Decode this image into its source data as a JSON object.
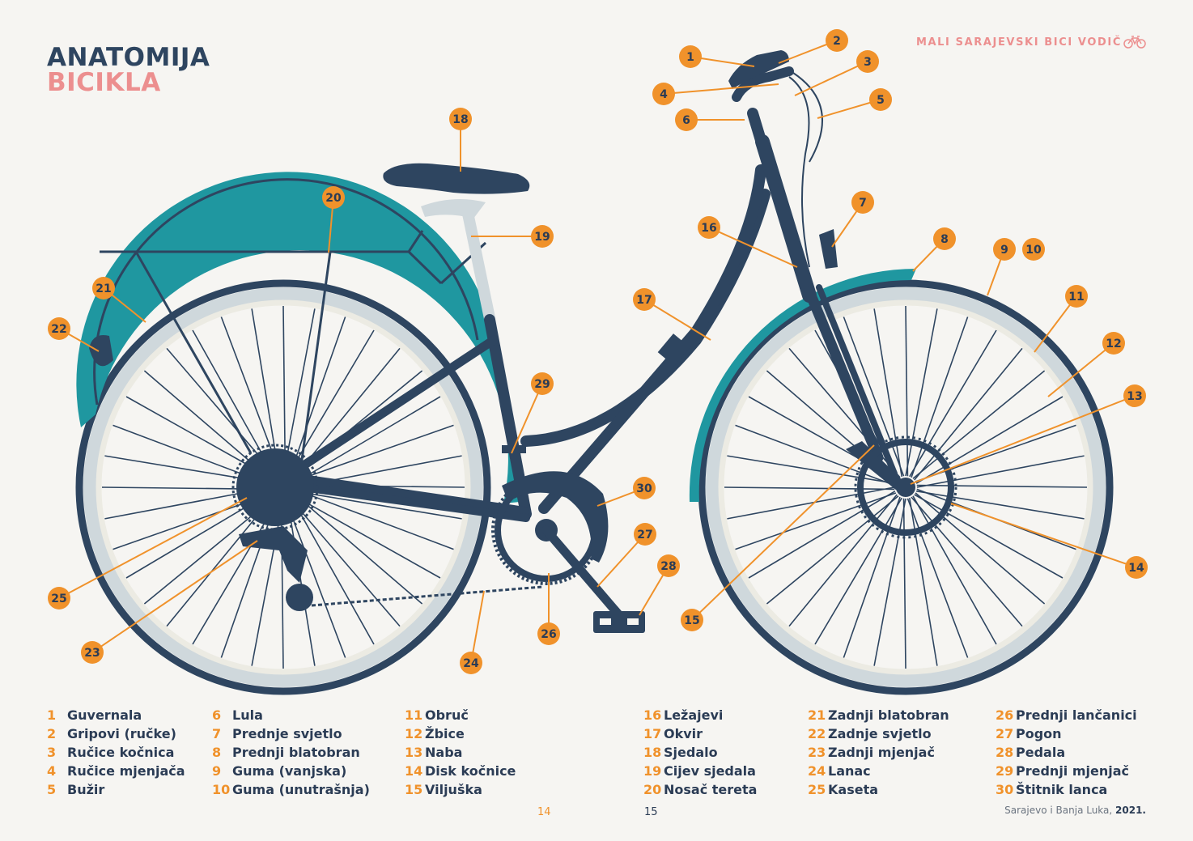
{
  "title": {
    "line1": "ANATOMIJA",
    "line2": "BICIKLA"
  },
  "header": {
    "text": "MALI SARAJEVSKI BICI VODIČ",
    "icon": "bicycle-icon"
  },
  "colors": {
    "frame": "#2e4560",
    "fender": "#1f97a0",
    "callout": "#f0922b",
    "tire_light": "#cfd8dc",
    "accent": "#ec8f8f"
  },
  "callouts": [
    "1",
    "2",
    "3",
    "4",
    "5",
    "6",
    "7",
    "8",
    "9",
    "10",
    "11",
    "12",
    "13",
    "14",
    "15",
    "16",
    "17",
    "18",
    "19",
    "20",
    "21",
    "22",
    "23",
    "24",
    "25",
    "26",
    "27",
    "28",
    "29",
    "30"
  ],
  "legend": [
    [
      {
        "num": "1",
        "label": "Guvernala"
      },
      {
        "num": "2",
        "label": "Gripovi (ručke)"
      },
      {
        "num": "3",
        "label": "Ručice kočnica"
      },
      {
        "num": "4",
        "label": "Ručice mjenjača"
      },
      {
        "num": "5",
        "label": "Bužir"
      }
    ],
    [
      {
        "num": "6",
        "label": "Lula"
      },
      {
        "num": "7",
        "label": "Prednje svjetlo"
      },
      {
        "num": "8",
        "label": "Prednji blatobran"
      },
      {
        "num": "9",
        "label": "Guma (vanjska)"
      },
      {
        "num": "10",
        "label": "Guma (unutrašnja)"
      }
    ],
    [
      {
        "num": "11",
        "label": "Obruč"
      },
      {
        "num": "12",
        "label": "Žbice"
      },
      {
        "num": "13",
        "label": "Naba"
      },
      {
        "num": "14",
        "label": "Disk kočnice"
      },
      {
        "num": "15",
        "label": "Viljuška"
      }
    ],
    [
      {
        "num": "16",
        "label": "Ležajevi"
      },
      {
        "num": "17",
        "label": "Okvir"
      },
      {
        "num": "18",
        "label": "Sjedalo"
      },
      {
        "num": "19",
        "label": "Cijev sjedala"
      },
      {
        "num": "20",
        "label": "Nosač tereta"
      }
    ],
    [
      {
        "num": "21",
        "label": "Zadnji blatobran"
      },
      {
        "num": "22",
        "label": "Zadnje svjetlo"
      },
      {
        "num": "23",
        "label": "Zadnji mjenjač"
      },
      {
        "num": "24",
        "label": "Lanac"
      },
      {
        "num": "25",
        "label": "Kaseta"
      }
    ],
    [
      {
        "num": "26",
        "label": "Prednji lančanici"
      },
      {
        "num": "27",
        "label": "Pogon"
      },
      {
        "num": "28",
        "label": "Pedala"
      },
      {
        "num": "29",
        "label": "Prednji mjenjač"
      },
      {
        "num": "30",
        "label": "Štitnik lanca"
      }
    ]
  ],
  "pages": {
    "left": "14",
    "right": "15"
  },
  "footer": {
    "text": "Sarajevo i Banja Luka, ",
    "year": "2021."
  }
}
